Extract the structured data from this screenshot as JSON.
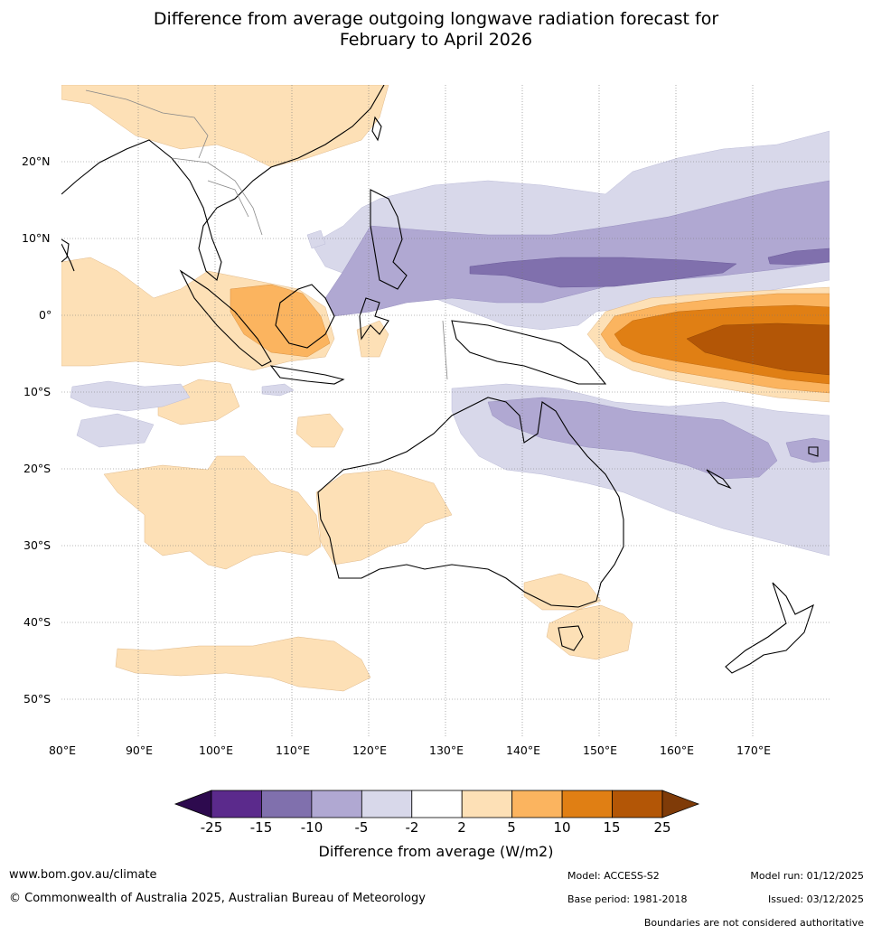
{
  "title": {
    "line1": "Difference from average outgoing longwave radiation forecast for",
    "line2": "February to April 2026"
  },
  "map": {
    "lat_labels": [
      "20°N",
      "10°N",
      "0°",
      "10°S",
      "20°S",
      "30°S",
      "40°S",
      "50°S"
    ],
    "lon_labels": [
      "80°E",
      "90°E",
      "100°E",
      "110°E",
      "120°E",
      "130°E",
      "140°E",
      "150°E",
      "160°E",
      "170°E"
    ],
    "extent": {
      "lon": [
        80,
        180
      ],
      "lat": [
        -55,
        30
      ]
    }
  },
  "colorbar": {
    "ticks": [
      "-25",
      "-15",
      "-10",
      "-5",
      "-2",
      "2",
      "5",
      "10",
      "15",
      "25"
    ],
    "colors": [
      "#2d0a4e",
      "#5b2a8c",
      "#8070ad",
      "#b0a8d2",
      "#d8d8ea",
      "#ffffff",
      "#fde0b6",
      "#fbb45f",
      "#e07f14",
      "#b35606",
      "#7f3b08"
    ],
    "label": "Difference from average (W/m2)"
  },
  "footer": {
    "website": "www.bom.gov.au/climate",
    "copyright": "© Commonwealth of Australia 2025, Australian Bureau of Meteorology",
    "model": "Model: ACCESS-S2",
    "base_period": "Base period: 1981-2018",
    "model_run": "Model run: 01/12/2025",
    "issued": "Issued: 03/12/2025",
    "disclaimer": "Boundaries are not considered authoritative"
  }
}
